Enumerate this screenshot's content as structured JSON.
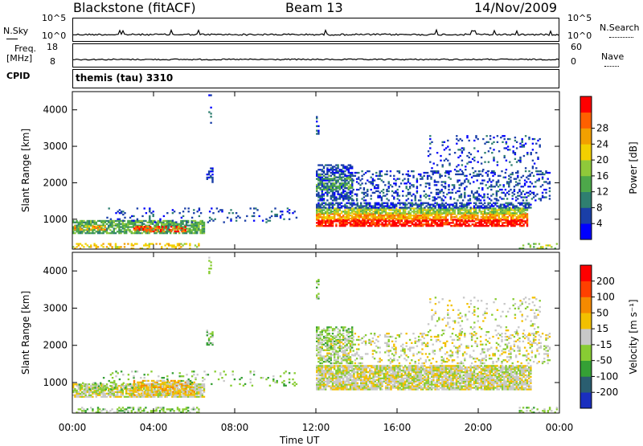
{
  "header": {
    "radar": "Blackstone (fitACF)",
    "beam": "Beam 13",
    "date": "14/Nov/2009"
  },
  "panels": {
    "nsky": {
      "label": "N.Sky",
      "ticks": [
        "10^5",
        "10^0"
      ]
    },
    "nsearch": {
      "label": "N.Search",
      "ticks": [
        "10^5",
        "10^0"
      ]
    },
    "freq": {
      "label_line1": "Freq.",
      "label_line2": "[MHz]",
      "ticks": [
        "18",
        "8"
      ]
    },
    "nave": {
      "label": "Nave",
      "ticks": [
        "60",
        "0"
      ]
    },
    "cpid": {
      "label": "CPID",
      "value": "themis (tau) 3310"
    }
  },
  "chart_data": [
    {
      "type": "heatmap",
      "name": "power",
      "ylabel": "Slant Range [km]",
      "xlabel": "Time UT",
      "xlim": [
        0,
        24
      ],
      "ylim": [
        180,
        4500
      ],
      "yticks": [
        "1000",
        "2000",
        "3000",
        "4000"
      ],
      "xticks": [
        "00:00",
        "04:00",
        "08:00",
        "12:00",
        "16:00",
        "20:00",
        "00:00"
      ],
      "colorbar": {
        "label": "Power [dB]",
        "ticks": [
          "4",
          "8",
          "12",
          "16",
          "20",
          "24",
          "28"
        ],
        "colors": [
          "#0000ff",
          "#1a3fa8",
          "#2f7f70",
          "#4da84a",
          "#8fc93a",
          "#f2d000",
          "#f2a000",
          "#ff6000",
          "#ff0000"
        ]
      },
      "regions": [
        {
          "t0": 0.0,
          "t1": 6.5,
          "r0": 600,
          "r1": 950,
          "level": 3,
          "density": 0.75
        },
        {
          "t0": 0.0,
          "t1": 1.6,
          "r0": 700,
          "r1": 820,
          "level": 6,
          "density": 0.5
        },
        {
          "t0": 3.0,
          "t1": 5.6,
          "r0": 650,
          "r1": 800,
          "level": 7,
          "density": 0.55
        },
        {
          "t0": 0.0,
          "t1": 6.2,
          "r0": 180,
          "r1": 320,
          "level": 5,
          "density": 0.35
        },
        {
          "t0": 1.5,
          "t1": 11.0,
          "r0": 900,
          "r1": 1300,
          "level": 1,
          "density": 0.12
        },
        {
          "t0": 6.6,
          "t1": 6.9,
          "r0": 2000,
          "r1": 2400,
          "level": 1,
          "density": 0.5
        },
        {
          "t0": 6.7,
          "t1": 6.85,
          "r0": 3500,
          "r1": 4400,
          "level": 1,
          "density": 0.15
        },
        {
          "t0": 12.0,
          "t1": 22.4,
          "r0": 800,
          "r1": 1000,
          "level": 8,
          "density": 0.8
        },
        {
          "t0": 12.0,
          "t1": 22.4,
          "r0": 1000,
          "r1": 1150,
          "level": 6,
          "density": 0.8
        },
        {
          "t0": 12.0,
          "t1": 22.4,
          "r0": 1150,
          "r1": 1300,
          "level": 4,
          "density": 0.75
        },
        {
          "t0": 12.0,
          "t1": 22.6,
          "r0": 1300,
          "r1": 1450,
          "level": 1,
          "density": 0.65
        },
        {
          "t0": 12.0,
          "t1": 13.8,
          "r0": 1500,
          "r1": 2500,
          "level": 1,
          "density": 0.6
        },
        {
          "t0": 12.0,
          "t1": 13.8,
          "r0": 1800,
          "r1": 2200,
          "level": 3,
          "density": 0.4
        },
        {
          "t0": 13.8,
          "t1": 23.5,
          "r0": 1500,
          "r1": 2300,
          "level": 1,
          "density": 0.25
        },
        {
          "t0": 17.5,
          "t1": 23.0,
          "r0": 2300,
          "r1": 3300,
          "level": 1,
          "density": 0.12
        },
        {
          "t0": 12.0,
          "t1": 12.1,
          "r0": 3200,
          "r1": 3800,
          "level": 1,
          "density": 0.3
        },
        {
          "t0": 22.0,
          "t1": 24.0,
          "r0": 180,
          "r1": 320,
          "level": 4,
          "density": 0.3
        }
      ]
    },
    {
      "type": "heatmap",
      "name": "velocity",
      "ylabel": "Slant Range [km]",
      "xlabel": "Time UT",
      "xlim": [
        0,
        24
      ],
      "ylim": [
        180,
        4500
      ],
      "yticks": [
        "1000",
        "2000",
        "3000",
        "4000"
      ],
      "xticks": [
        "00:00",
        "04:00",
        "08:00",
        "12:00",
        "16:00",
        "20:00",
        "00:00"
      ],
      "colorbar": {
        "label": "Velocity [m s⁻¹]",
        "ticks": [
          "200",
          "100",
          "50",
          "15",
          "-15",
          "-50",
          "-100",
          "-200"
        ],
        "colors": [
          "#1a2fbf",
          "#2a5e70",
          "#35a035",
          "#88cc33",
          "#c8c8c8",
          "#f2c000",
          "#f58a00",
          "#ff4000",
          "#ff0000"
        ]
      },
      "regions": [
        {
          "t0": 0.0,
          "t1": 6.5,
          "r0": 600,
          "r1": 950,
          "level": 4,
          "density": 0.8
        },
        {
          "t0": 3.0,
          "t1": 6.0,
          "r0": 650,
          "r1": 1050,
          "level": 5,
          "density": 0.6
        },
        {
          "t0": 0.3,
          "t1": 3.0,
          "r0": 800,
          "r1": 1000,
          "level": 3,
          "density": 0.3
        },
        {
          "t0": 0.0,
          "t1": 6.2,
          "r0": 180,
          "r1": 320,
          "level": 3,
          "density": 0.35
        },
        {
          "t0": 1.5,
          "t1": 11.0,
          "r0": 900,
          "r1": 1300,
          "level": 3,
          "density": 0.1
        },
        {
          "t0": 6.6,
          "t1": 6.9,
          "r0": 2000,
          "r1": 2400,
          "level": 3,
          "density": 0.5
        },
        {
          "t0": 6.7,
          "t1": 6.85,
          "r0": 3500,
          "r1": 4400,
          "level": 3,
          "density": 0.15
        },
        {
          "t0": 12.0,
          "t1": 22.6,
          "r0": 800,
          "r1": 1450,
          "level": 4,
          "density": 0.85
        },
        {
          "t0": 12.0,
          "t1": 13.8,
          "r0": 1500,
          "r1": 2500,
          "level": 3,
          "density": 0.45
        },
        {
          "t0": 12.0,
          "t1": 13.8,
          "r0": 1600,
          "r1": 2300,
          "level": 4,
          "density": 0.3
        },
        {
          "t0": 13.8,
          "t1": 23.5,
          "r0": 1500,
          "r1": 2300,
          "level": 4,
          "density": 0.22
        },
        {
          "t0": 17.5,
          "t1": 23.0,
          "r0": 2300,
          "r1": 3300,
          "level": 4,
          "density": 0.12
        },
        {
          "t0": 12.0,
          "t1": 12.1,
          "r0": 3200,
          "r1": 3800,
          "level": 3,
          "density": 0.3
        },
        {
          "t0": 22.0,
          "t1": 24.0,
          "r0": 180,
          "r1": 320,
          "level": 3,
          "density": 0.3
        }
      ]
    }
  ]
}
